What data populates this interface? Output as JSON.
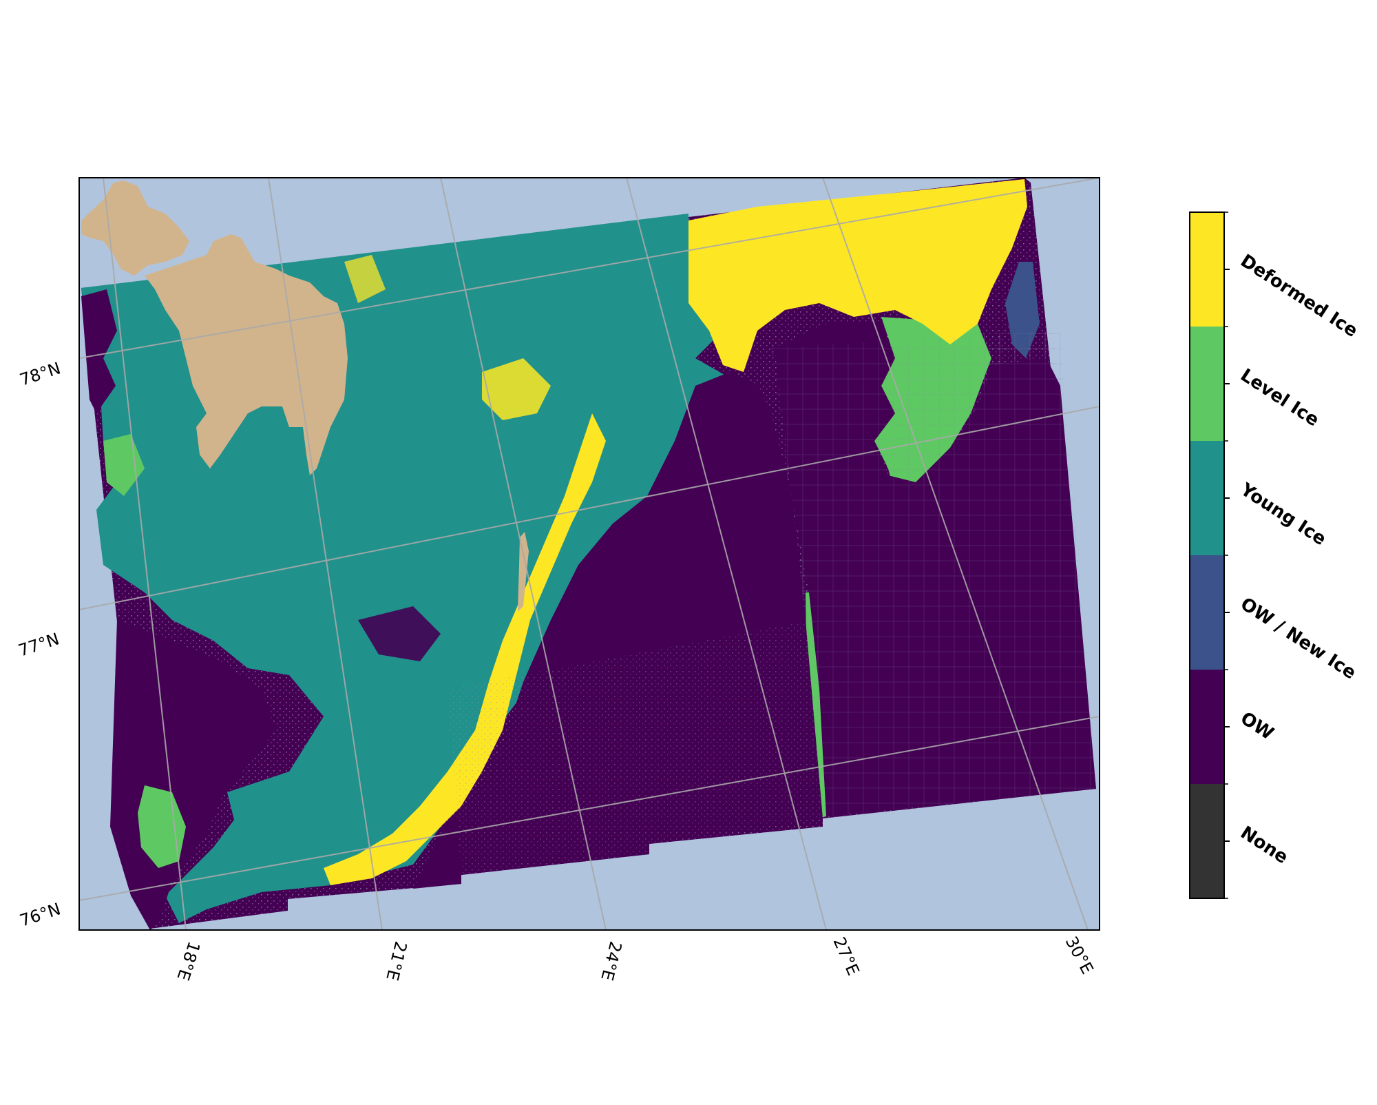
{
  "map": {
    "projection": "stereographic",
    "lon_range": [
      16.5,
      30.5
    ],
    "lat_range": [
      75.8,
      78.8
    ],
    "colors": {
      "ocean": "#b0c4de",
      "land": "#d2b48c",
      "gridline": "#a9a9a9"
    },
    "latitude_labels": [
      "78°N",
      "77°N",
      "76°N"
    ],
    "longitude_labels": [
      "18°E",
      "21°E",
      "24°E",
      "27°E",
      "30°E"
    ],
    "land_label": ""
  },
  "classification": {
    "classes": [
      {
        "label": "Deformed Ice",
        "color": "#fde725"
      },
      {
        "label": "Level Ice",
        "color": "#5ec962"
      },
      {
        "label": "Young Ice",
        "color": "#21918c"
      },
      {
        "label": "OW / New Ice",
        "color": "#3b528b"
      },
      {
        "label": "OW",
        "color": "#440154"
      },
      {
        "label": "None",
        "color": "#333333"
      }
    ]
  },
  "colorbar": {
    "orientation": "vertical",
    "placement": "right"
  }
}
